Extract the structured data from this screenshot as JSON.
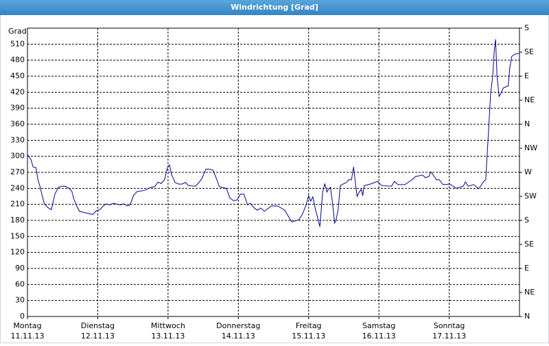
{
  "chart_data": {
    "type": "line",
    "title": "Windrichtung [Grad]",
    "ylabel": "Grad",
    "xlim": [
      0,
      7
    ],
    "xticks": [
      {
        "value": 0,
        "label": "Montag",
        "date": "11.11.13"
      },
      {
        "value": 1,
        "label": "Dienstag",
        "date": "12.11.13"
      },
      {
        "value": 2,
        "label": "Mittwoch",
        "date": "13.11.13"
      },
      {
        "value": 3,
        "label": "Donnerstag",
        "date": "14.11.13"
      },
      {
        "value": 4,
        "label": "Freitag",
        "date": "15.11.13"
      },
      {
        "value": 5,
        "label": "Samstag",
        "date": "16.11.13"
      },
      {
        "value": 6,
        "label": "Sonntag",
        "date": "17.11.13"
      }
    ],
    "ylim": [
      0,
      540
    ],
    "yticks": [
      0,
      30,
      60,
      90,
      120,
      150,
      180,
      210,
      240,
      270,
      300,
      330,
      360,
      390,
      420,
      450,
      480,
      510
    ],
    "y2lim": [
      0,
      540
    ],
    "y2ticks": [
      {
        "value": 0,
        "label": "N"
      },
      {
        "value": 45,
        "label": "NE"
      },
      {
        "value": 90,
        "label": "E"
      },
      {
        "value": 135,
        "label": "SE"
      },
      {
        "value": 180,
        "label": "S"
      },
      {
        "value": 225,
        "label": "SW"
      },
      {
        "value": 270,
        "label": "W"
      },
      {
        "value": 315,
        "label": "NW"
      },
      {
        "value": 360,
        "label": "N"
      },
      {
        "value": 405,
        "label": "NE"
      },
      {
        "value": 450,
        "label": "E"
      },
      {
        "value": 495,
        "label": "SE"
      },
      {
        "value": 540,
        "label": "S"
      }
    ],
    "grid": true,
    "series": [
      {
        "color": "#00008b",
        "x": [
          0,
          0.05,
          0.08,
          0.12,
          0.15,
          0.18,
          0.21,
          0.24,
          0.29,
          0.34,
          0.39,
          0.44,
          0.49,
          0.54,
          0.59,
          0.63,
          0.66,
          0.7,
          0.74,
          0.83,
          0.93,
          0.98,
          1.03,
          1.07,
          1.12,
          1.17,
          1.22,
          1.32,
          1.37,
          1.42,
          1.46,
          1.51,
          1.56,
          1.66,
          1.76,
          1.81,
          1.86,
          1.9,
          1.95,
          1.99,
          2.02,
          2.05,
          2.1,
          2.15,
          2.2,
          2.25,
          2.29,
          2.39,
          2.44,
          2.48,
          2.54,
          2.59,
          2.64,
          2.68,
          2.73,
          2.83,
          2.88,
          2.93,
          2.98,
          3.03,
          3.08,
          3.13,
          3.17,
          3.22,
          3.27,
          3.32,
          3.37,
          3.47,
          3.56,
          3.66,
          3.71,
          3.76,
          3.86,
          3.91,
          3.96,
          3.98,
          4.0,
          4.03,
          4.06,
          4.1,
          4.13,
          4.16,
          4.2,
          4.23,
          4.26,
          4.28,
          4.31,
          4.34,
          4.37,
          4.39,
          4.42,
          4.45,
          4.49,
          4.54,
          4.57,
          4.61,
          4.64,
          4.67,
          4.69,
          4.72,
          4.75,
          4.77,
          4.79,
          4.88,
          4.98,
          5.04,
          5.18,
          5.22,
          5.27,
          5.37,
          5.47,
          5.52,
          5.62,
          5.66,
          5.71,
          5.74,
          5.82,
          5.86,
          5.91,
          6.01,
          6.1,
          6.2,
          6.23,
          6.27,
          6.35,
          6.42,
          6.49,
          6.52,
          6.54,
          6.56,
          6.59,
          6.62,
          6.64,
          6.66,
          6.68,
          6.71,
          6.74,
          6.77,
          6.84,
          6.86,
          6.89,
          6.93,
          7.0
        ],
        "values": [
          303,
          294,
          280,
          279,
          256,
          243,
          226,
          211,
          204,
          200,
          229,
          242,
          244,
          244,
          240,
          235,
          220,
          207,
          197,
          194,
          191,
          198,
          200,
          206,
          211,
          209,
          212,
          209,
          211,
          207,
          209,
          227,
          234,
          236,
          242,
          243,
          252,
          249,
          256,
          278,
          284,
          266,
          251,
          248,
          248,
          251,
          245,
          244,
          251,
          258,
          276,
          276,
          274,
          261,
          243,
          240,
          222,
          217,
          218,
          229,
          229,
          209,
          212,
          204,
          199,
          203,
          197,
          207,
          207,
          199,
          188,
          177,
          181,
          191,
          207,
          217,
          226,
          216,
          224,
          199,
          184,
          168,
          233,
          249,
          233,
          238,
          242,
          213,
          175,
          181,
          200,
          245,
          248,
          251,
          256,
          256,
          280,
          245,
          225,
          233,
          238,
          226,
          245,
          248,
          253,
          245,
          244,
          253,
          247,
          247,
          256,
          262,
          265,
          260,
          262,
          271,
          256,
          256,
          247,
          248,
          240,
          244,
          252,
          244,
          247,
          239,
          253,
          256,
          303,
          348,
          419,
          451,
          496,
          519,
          451,
          412,
          419,
          428,
          432,
          464,
          487,
          491,
          493
        ]
      }
    ]
  }
}
